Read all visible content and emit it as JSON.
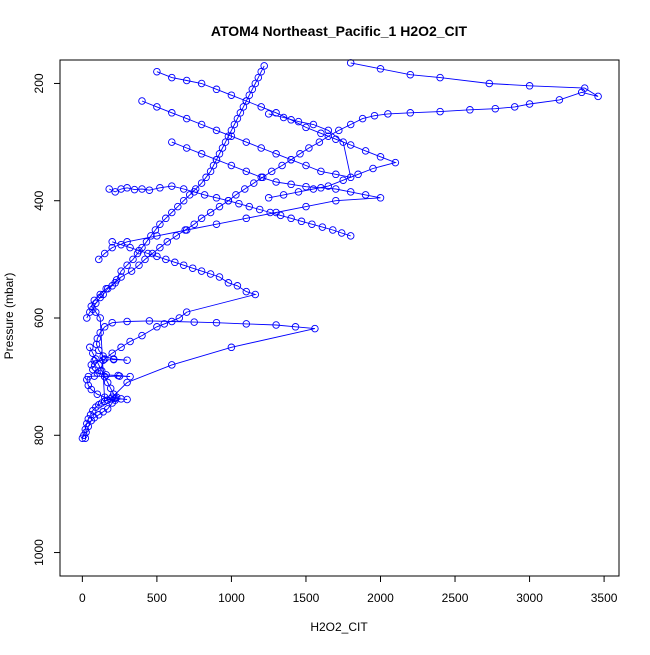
{
  "chart_data": {
    "type": "scatter",
    "title": "ATOM4 Northeast_Pacific_1 H2O2_CIT",
    "xlabel": "H2O2_CIT",
    "ylabel": "Pressure (mbar)",
    "xlim": [
      -150,
      3600
    ],
    "ylim": [
      1040,
      160
    ],
    "y_reversed": true,
    "grid": false,
    "legend": "none",
    "marker": "open-circle",
    "connected": true,
    "color": "#0000FF",
    "x_ticks": [
      0,
      500,
      1000,
      1500,
      2000,
      2500,
      3000,
      3500
    ],
    "y_ticks": [
      200,
      400,
      600,
      800,
      1000
    ],
    "series": [
      {
        "points": [
          [
            0,
            805
          ],
          [
            10,
            800
          ],
          [
            20,
            790
          ],
          [
            30,
            780
          ],
          [
            40,
            772
          ],
          [
            55,
            765
          ],
          [
            70,
            758
          ],
          [
            90,
            752
          ],
          [
            110,
            748
          ],
          [
            130,
            745
          ],
          [
            150,
            742
          ],
          [
            170,
            740
          ],
          [
            190,
            738
          ],
          [
            220,
            740
          ],
          [
            260,
            738
          ],
          [
            300,
            739
          ],
          [
            220,
            737
          ],
          [
            150,
            735
          ],
          [
            100,
            730
          ],
          [
            60,
            722
          ],
          [
            40,
            715
          ],
          [
            30,
            705
          ],
          [
            40,
            700
          ],
          [
            80,
            699
          ],
          [
            150,
            700
          ],
          [
            250,
            699
          ],
          [
            320,
            700
          ],
          [
            240,
            698
          ],
          [
            160,
            697
          ],
          [
            100,
            694
          ],
          [
            70,
            688
          ],
          [
            60,
            680
          ],
          [
            80,
            673
          ],
          [
            140,
            672
          ],
          [
            210,
            671
          ],
          [
            300,
            672
          ],
          [
            210,
            670
          ],
          [
            140,
            665
          ],
          [
            110,
            655
          ],
          [
            95,
            645
          ],
          [
            100,
            635
          ],
          [
            120,
            625
          ],
          [
            150,
            615
          ],
          [
            200,
            608
          ],
          [
            300,
            606
          ],
          [
            450,
            605
          ],
          [
            600,
            606
          ],
          [
            750,
            607
          ],
          [
            900,
            608
          ],
          [
            1100,
            610
          ],
          [
            1300,
            612
          ],
          [
            1430,
            615
          ],
          [
            1560,
            618
          ],
          [
            1000,
            650
          ],
          [
            600,
            680
          ],
          [
            300,
            710
          ],
          [
            200,
            735
          ],
          [
            150,
            742
          ],
          [
            120,
            600
          ],
          [
            90,
            590
          ],
          [
            60,
            580
          ],
          [
            80,
            570
          ],
          [
            120,
            560
          ],
          [
            160,
            550
          ],
          [
            220,
            540
          ],
          [
            260,
            530
          ],
          [
            330,
            520
          ],
          [
            380,
            510
          ],
          [
            420,
            500
          ],
          [
            470,
            490
          ],
          [
            520,
            480
          ],
          [
            570,
            470
          ],
          [
            630,
            460
          ],
          [
            690,
            450
          ],
          [
            750,
            440
          ],
          [
            800,
            430
          ],
          [
            860,
            420
          ],
          [
            920,
            410
          ],
          [
            980,
            400
          ],
          [
            1030,
            390
          ],
          [
            1090,
            380
          ],
          [
            1150,
            370
          ],
          [
            1210,
            360
          ],
          [
            1270,
            350
          ],
          [
            1340,
            340
          ],
          [
            1400,
            330
          ],
          [
            1460,
            320
          ],
          [
            1520,
            310
          ],
          [
            1590,
            300
          ],
          [
            1650,
            290
          ],
          [
            1720,
            280
          ],
          [
            1800,
            270
          ],
          [
            1880,
            260
          ],
          [
            1960,
            255
          ],
          [
            2050,
            252
          ],
          [
            2200,
            250
          ],
          [
            2400,
            248
          ],
          [
            2600,
            245
          ],
          [
            2770,
            243
          ],
          [
            2900,
            240
          ],
          [
            3000,
            235
          ],
          [
            3200,
            228
          ],
          [
            3350,
            215
          ],
          [
            3460,
            222
          ],
          [
            3370,
            208
          ],
          [
            3000,
            204
          ],
          [
            2730,
            200
          ],
          [
            2400,
            190
          ],
          [
            2200,
            185
          ],
          [
            2000,
            175
          ],
          [
            1800,
            165
          ]
        ]
      },
      {
        "points": [
          [
            30,
            600
          ],
          [
            50,
            590
          ],
          [
            70,
            585
          ],
          [
            90,
            575
          ],
          [
            120,
            565
          ],
          [
            140,
            560
          ],
          [
            170,
            550
          ],
          [
            200,
            545
          ],
          [
            230,
            535
          ],
          [
            260,
            520
          ],
          [
            300,
            510
          ],
          [
            340,
            500
          ],
          [
            370,
            490
          ],
          [
            400,
            480
          ],
          [
            430,
            470
          ],
          [
            460,
            460
          ],
          [
            490,
            450
          ],
          [
            520,
            440
          ],
          [
            560,
            430
          ],
          [
            600,
            420
          ],
          [
            640,
            410
          ],
          [
            680,
            400
          ],
          [
            720,
            390
          ],
          [
            760,
            380
          ],
          [
            800,
            370
          ],
          [
            830,
            360
          ],
          [
            860,
            350
          ],
          [
            880,
            340
          ],
          [
            900,
            330
          ],
          [
            920,
            320
          ],
          [
            940,
            310
          ],
          [
            960,
            300
          ],
          [
            980,
            290
          ],
          [
            1000,
            280
          ],
          [
            1020,
            270
          ],
          [
            1040,
            260
          ],
          [
            1060,
            250
          ],
          [
            1080,
            240
          ],
          [
            1100,
            230
          ],
          [
            1120,
            220
          ],
          [
            1140,
            210
          ],
          [
            1160,
            200
          ],
          [
            1180,
            190
          ],
          [
            1200,
            180
          ],
          [
            1220,
            170
          ]
        ]
      },
      {
        "points": [
          [
            180,
            380
          ],
          [
            220,
            385
          ],
          [
            260,
            380
          ],
          [
            300,
            378
          ],
          [
            350,
            381
          ],
          [
            400,
            380
          ],
          [
            450,
            382
          ],
          [
            520,
            378
          ],
          [
            600,
            375
          ],
          [
            680,
            380
          ],
          [
            750,
            385
          ],
          [
            820,
            390
          ],
          [
            900,
            395
          ],
          [
            980,
            400
          ],
          [
            1050,
            405
          ],
          [
            1120,
            410
          ],
          [
            1190,
            415
          ],
          [
            1260,
            420
          ],
          [
            1330,
            425
          ],
          [
            1400,
            430
          ],
          [
            1470,
            435
          ],
          [
            1540,
            440
          ],
          [
            1610,
            445
          ],
          [
            1680,
            450
          ],
          [
            1740,
            455
          ],
          [
            1800,
            460
          ]
        ]
      },
      {
        "points": [
          [
            200,
            470
          ],
          [
            260,
            475
          ],
          [
            320,
            480
          ],
          [
            380,
            485
          ],
          [
            440,
            490
          ],
          [
            500,
            495
          ],
          [
            560,
            500
          ],
          [
            620,
            505
          ],
          [
            680,
            510
          ],
          [
            740,
            515
          ],
          [
            800,
            520
          ],
          [
            860,
            525
          ],
          [
            920,
            530
          ],
          [
            980,
            540
          ],
          [
            1040,
            545
          ],
          [
            1100,
            555
          ],
          [
            1160,
            560
          ],
          [
            700,
            590
          ],
          [
            650,
            600
          ],
          [
            550,
            610
          ],
          [
            500,
            615
          ],
          [
            400,
            630
          ],
          [
            320,
            640
          ],
          [
            260,
            650
          ],
          [
            200,
            660
          ],
          [
            150,
            670
          ],
          [
            120,
            690
          ]
        ]
      },
      {
        "points": [
          [
            500,
            180
          ],
          [
            600,
            190
          ],
          [
            700,
            195
          ],
          [
            800,
            200
          ],
          [
            900,
            210
          ],
          [
            1000,
            220
          ],
          [
            1100,
            230
          ],
          [
            1200,
            240
          ],
          [
            1300,
            250
          ],
          [
            1400,
            262
          ],
          [
            1500,
            275
          ],
          [
            1600,
            285
          ],
          [
            1700,
            295
          ],
          [
            1800,
            305
          ],
          [
            1900,
            315
          ],
          [
            2000,
            325
          ],
          [
            2100,
            335
          ],
          [
            1950,
            345
          ],
          [
            1850,
            355
          ],
          [
            1750,
            365
          ],
          [
            1650,
            375
          ],
          [
            1550,
            380
          ],
          [
            1450,
            385
          ],
          [
            1350,
            390
          ],
          [
            1250,
            395
          ]
        ]
      },
      {
        "points": [
          [
            600,
            300
          ],
          [
            700,
            310
          ],
          [
            800,
            320
          ],
          [
            900,
            330
          ],
          [
            1000,
            340
          ],
          [
            1100,
            350
          ],
          [
            1200,
            360
          ],
          [
            1300,
            368
          ],
          [
            1400,
            372
          ],
          [
            1500,
            376
          ],
          [
            1600,
            378
          ],
          [
            1700,
            380
          ],
          [
            1800,
            385
          ],
          [
            1900,
            390
          ],
          [
            2000,
            395
          ],
          [
            1700,
            400
          ],
          [
            1500,
            410
          ],
          [
            1300,
            420
          ],
          [
            1100,
            430
          ],
          [
            900,
            440
          ],
          [
            700,
            450
          ],
          [
            500,
            460
          ],
          [
            300,
            470
          ],
          [
            200,
            480
          ],
          [
            150,
            490
          ],
          [
            110,
            500
          ]
        ]
      },
      {
        "points": [
          [
            400,
            230
          ],
          [
            500,
            240
          ],
          [
            600,
            250
          ],
          [
            700,
            260
          ],
          [
            800,
            270
          ],
          [
            900,
            280
          ],
          [
            1000,
            290
          ],
          [
            1100,
            300
          ],
          [
            1200,
            310
          ],
          [
            1300,
            320
          ],
          [
            1400,
            330
          ],
          [
            1500,
            340
          ],
          [
            1600,
            350
          ],
          [
            1700,
            355
          ],
          [
            1800,
            360
          ],
          [
            1750,
            300
          ],
          [
            1650,
            280
          ],
          [
            1550,
            270
          ],
          [
            1450,
            265
          ],
          [
            1350,
            258
          ],
          [
            1250,
            252
          ]
        ]
      },
      {
        "points": [
          [
            50,
            650
          ],
          [
            70,
            660
          ],
          [
            90,
            670
          ],
          [
            110,
            680
          ],
          [
            130,
            690
          ],
          [
            150,
            700
          ],
          [
            170,
            710
          ],
          [
            190,
            720
          ],
          [
            210,
            730
          ],
          [
            230,
            735
          ],
          [
            200,
            745
          ],
          [
            170,
            755
          ],
          [
            140,
            760
          ],
          [
            110,
            765
          ],
          [
            80,
            770
          ],
          [
            60,
            775
          ],
          [
            40,
            785
          ],
          [
            25,
            795
          ],
          [
            20,
            805
          ]
        ]
      }
    ]
  }
}
